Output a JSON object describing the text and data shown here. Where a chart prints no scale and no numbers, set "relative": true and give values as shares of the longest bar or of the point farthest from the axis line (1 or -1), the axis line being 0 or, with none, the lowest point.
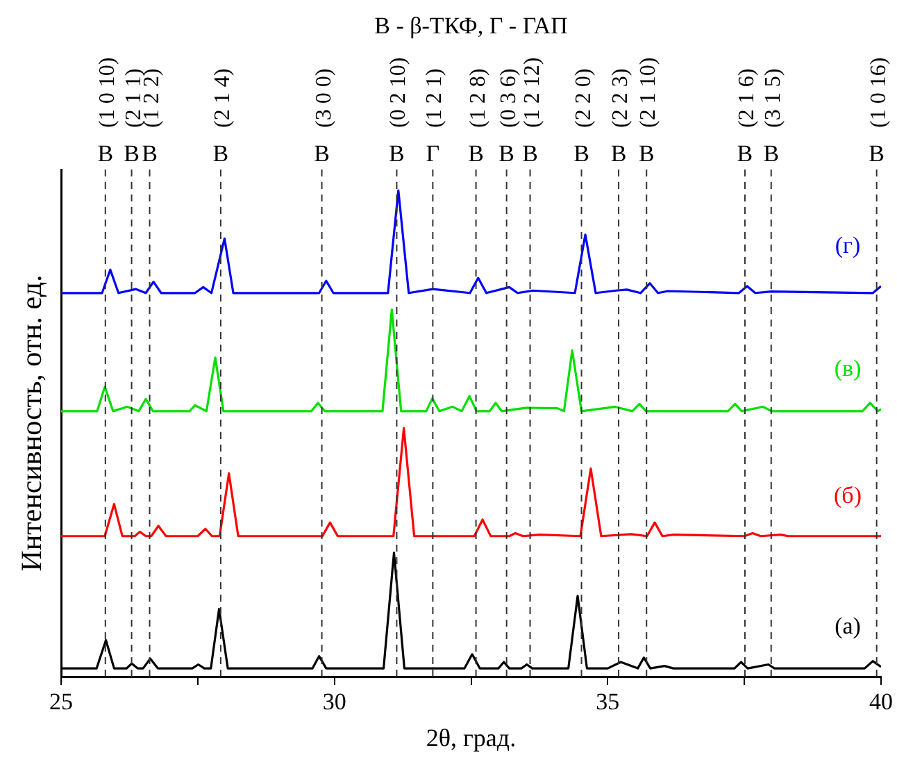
{
  "chart_data": {
    "type": "line",
    "title": "В - β-ТКФ, Г - ГАП",
    "xlabel": "2θ, град.",
    "ylabel": "Интенсивность, отн. ед.",
    "relative": true,
    "legend": false,
    "grid": false,
    "marker": "none",
    "xlim": [
      25,
      40
    ],
    "xticks": [
      25,
      {
        "value": 27.5,
        "label": null
      },
      30,
      {
        "value": 32.5,
        "label": null
      },
      35,
      {
        "value": 37.5,
        "label": null
      },
      40
    ],
    "series": [
      {
        "name": "(а)",
        "color": "#000000",
        "x": [
          25,
          25.65,
          25.82,
          25.97,
          26.2,
          26.29,
          26.4,
          26.5,
          26.63,
          26.77,
          27.4,
          27.51,
          27.62,
          27.74,
          27.89,
          28.05,
          29.6,
          29.72,
          29.85,
          30.9,
          31.09,
          31.28,
          32.38,
          32.52,
          32.66,
          33.0,
          33.1,
          33.2,
          33.42,
          33.52,
          33.62,
          34.28,
          34.45,
          34.62,
          35.0,
          35.24,
          35.55,
          35.66,
          35.78,
          36.04,
          36.2,
          37.32,
          37.44,
          37.56,
          37.94,
          38.05,
          39.7,
          39.85,
          40
        ],
        "values": [
          0.017,
          0.017,
          0.075,
          0.017,
          0.017,
          0.027,
          0.017,
          0.017,
          0.037,
          0.017,
          0.017,
          0.025,
          0.017,
          0.017,
          0.139,
          0.017,
          0.017,
          0.042,
          0.017,
          0.017,
          0.255,
          0.017,
          0.017,
          0.046,
          0.017,
          0.017,
          0.03,
          0.017,
          0.017,
          0.025,
          0.017,
          0.017,
          0.166,
          0.017,
          0.017,
          0.03,
          0.017,
          0.039,
          0.017,
          0.022,
          0.017,
          0.017,
          0.03,
          0.017,
          0.025,
          0.017,
          0.017,
          0.032,
          0.02
        ]
      },
      {
        "name": "(б)",
        "color": "#ff0000",
        "x": [
          25,
          25.8,
          25.97,
          26.12,
          26.35,
          26.44,
          26.55,
          26.65,
          26.78,
          26.92,
          27.5,
          27.64,
          27.76,
          27.9,
          28.07,
          28.24,
          29.78,
          29.92,
          30.06,
          31.08,
          31.27,
          31.46,
          32.56,
          32.71,
          32.86,
          33.2,
          33.31,
          33.45,
          33.76,
          34.5,
          34.69,
          34.88,
          35.43,
          35.72,
          35.86,
          36.0,
          36.21,
          37.5,
          37.65,
          37.8,
          38.16,
          38.3,
          40
        ],
        "values": [
          0.289,
          0.289,
          0.355,
          0.289,
          0.289,
          0.298,
          0.289,
          0.289,
          0.31,
          0.289,
          0.289,
          0.304,
          0.289,
          0.289,
          0.418,
          0.289,
          0.289,
          0.317,
          0.289,
          0.289,
          0.511,
          0.289,
          0.289,
          0.323,
          0.289,
          0.289,
          0.295,
          0.289,
          0.292,
          0.289,
          0.428,
          0.289,
          0.293,
          0.289,
          0.317,
          0.289,
          0.292,
          0.289,
          0.295,
          0.289,
          0.292,
          0.289,
          0.289
        ]
      },
      {
        "name": "(в)",
        "color": "#00e000",
        "x": [
          25,
          25.66,
          25.8,
          25.95,
          26.21,
          26.42,
          26.55,
          26.68,
          27.35,
          27.45,
          27.66,
          27.82,
          27.97,
          29.58,
          29.7,
          29.82,
          30.88,
          31.05,
          31.22,
          31.68,
          31.79,
          31.92,
          32.16,
          32.33,
          32.47,
          32.6,
          32.84,
          32.95,
          33.06,
          33.52,
          34.08,
          34.2,
          34.35,
          34.52,
          35.13,
          35.45,
          35.58,
          35.7,
          37.2,
          37.33,
          37.45,
          37.84,
          38.0,
          39.66,
          39.8,
          39.94,
          40
        ],
        "values": [
          0.546,
          0.546,
          0.596,
          0.546,
          0.555,
          0.546,
          0.571,
          0.546,
          0.546,
          0.558,
          0.546,
          0.656,
          0.546,
          0.546,
          0.563,
          0.546,
          0.546,
          0.755,
          0.546,
          0.546,
          0.572,
          0.546,
          0.555,
          0.546,
          0.577,
          0.546,
          0.546,
          0.563,
          0.546,
          0.553,
          0.552,
          0.546,
          0.671,
          0.546,
          0.555,
          0.546,
          0.561,
          0.546,
          0.546,
          0.561,
          0.546,
          0.555,
          0.546,
          0.546,
          0.563,
          0.546,
          0.55
        ]
      },
      {
        "name": "(г)",
        "color": "#0000ff",
        "x": [
          25,
          25.75,
          25.9,
          26.05,
          26.37,
          26.55,
          26.69,
          26.83,
          27.45,
          27.6,
          27.75,
          27.99,
          28.15,
          29.72,
          29.85,
          29.98,
          30.98,
          31.17,
          31.36,
          31.8,
          32.48,
          32.63,
          32.78,
          33.2,
          33.35,
          33.63,
          34.4,
          34.59,
          34.78,
          35.15,
          35.35,
          35.6,
          35.77,
          35.92,
          36.1,
          37.4,
          37.55,
          37.7,
          37.99,
          39.85,
          40
        ],
        "values": [
          0.789,
          0.789,
          0.837,
          0.789,
          0.797,
          0.789,
          0.812,
          0.789,
          0.789,
          0.801,
          0.789,
          0.901,
          0.789,
          0.789,
          0.814,
          0.789,
          0.789,
          1.0,
          0.789,
          0.797,
          0.789,
          0.82,
          0.789,
          0.801,
          0.789,
          0.794,
          0.789,
          0.909,
          0.789,
          0.794,
          0.796,
          0.789,
          0.809,
          0.789,
          0.793,
          0.789,
          0.803,
          0.789,
          0.792,
          0.789,
          0.803
        ]
      }
    ],
    "ref_lines": [
      {
        "axis": "x",
        "value": 25.81,
        "label": "В",
        "line_style": "dashed",
        "color": "#333333"
      },
      {
        "axis": "x",
        "value": 26.29,
        "label": "В",
        "line_style": "dashed",
        "color": "#333333"
      },
      {
        "axis": "x",
        "value": 26.62,
        "label": "В",
        "line_style": "dashed",
        "color": "#333333"
      },
      {
        "axis": "x",
        "value": 27.92,
        "label": "В",
        "line_style": "dashed",
        "color": "#333333"
      },
      {
        "axis": "x",
        "value": 29.77,
        "label": "В",
        "line_style": "dashed",
        "color": "#333333"
      },
      {
        "axis": "x",
        "value": 31.14,
        "label": "В",
        "line_style": "dashed",
        "color": "#333333"
      },
      {
        "axis": "x",
        "value": 31.8,
        "label": "Г",
        "line_style": "dashed",
        "color": "#333333"
      },
      {
        "axis": "x",
        "value": 32.59,
        "label": "В",
        "line_style": "dashed",
        "color": "#333333"
      },
      {
        "axis": "x",
        "value": 33.15,
        "label": "В",
        "line_style": "dashed",
        "color": "#333333"
      },
      {
        "axis": "x",
        "value": 33.58,
        "label": "В",
        "line_style": "dashed",
        "color": "#333333"
      },
      {
        "axis": "x",
        "value": 34.52,
        "label": "В",
        "line_style": "dashed",
        "color": "#333333"
      },
      {
        "axis": "x",
        "value": 35.2,
        "label": "В",
        "line_style": "dashed",
        "color": "#333333"
      },
      {
        "axis": "x",
        "value": 35.71,
        "label": "В",
        "line_style": "dashed",
        "color": "#333333"
      },
      {
        "axis": "x",
        "value": 37.51,
        "label": "В",
        "line_style": "dashed",
        "color": "#333333"
      },
      {
        "axis": "x",
        "value": 37.99,
        "label": "В",
        "line_style": "dashed",
        "color": "#333333"
      },
      {
        "axis": "x",
        "value": 39.92,
        "label": "В",
        "line_style": "dashed",
        "color": "#333333"
      }
    ],
    "annotations": [
      "(1 0 10)",
      "(2 1 1)",
      "(1 2 2)",
      "(2 1 4)",
      "(3 0 0)",
      "(0 2 10)",
      "(1 2 1)",
      "(1 2 8)",
      "(0 3 6)",
      "(1 2 12)",
      "(2 2 0)",
      "(2 2 3)",
      "(2 1 10)",
      "(2 1 6)",
      "(3 1 5)",
      "(1 0 16)"
    ]
  }
}
